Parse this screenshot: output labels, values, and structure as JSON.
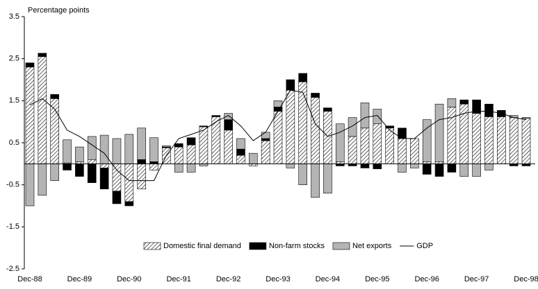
{
  "chart_data": {
    "type": "stacked-bar-line",
    "y_label": "Percentage points",
    "categories": [
      "Dec-88",
      null,
      null,
      null,
      "Dec-89",
      null,
      null,
      null,
      "Dec-90",
      null,
      null,
      null,
      "Dec-91",
      null,
      null,
      null,
      "Dec-92",
      null,
      null,
      null,
      "Dec-93",
      null,
      null,
      null,
      "Dec-94",
      null,
      null,
      null,
      "Dec-95",
      null,
      null,
      null,
      "Dec-96",
      null,
      null,
      null,
      "Dec-97",
      null,
      null,
      null,
      "Dec-98"
    ],
    "series": [
      {
        "name": "Domestic final demand",
        "color": "#000000",
        "kind": "bar",
        "values": [
          2.3,
          2.55,
          1.55,
          0.02,
          0.05,
          0.1,
          -0.1,
          -0.65,
          -0.9,
          -0.6,
          -0.15,
          0.38,
          0.4,
          0.45,
          0.88,
          1.12,
          0.8,
          0.2,
          -0.05,
          0.55,
          1.25,
          1.75,
          1.95,
          1.58,
          1.25,
          0.05,
          0.65,
          0.85,
          0.95,
          0.85,
          0.6,
          0.6,
          0.05,
          0.05,
          1.35,
          1.42,
          1.2,
          1.12,
          1.12,
          1.1,
          1.08
        ]
      },
      {
        "name": "Non-farm stocks",
        "color": "#000000",
        "kind": "bar",
        "values": [
          0.1,
          0.08,
          0.1,
          -0.15,
          -0.3,
          -0.45,
          -0.5,
          -0.3,
          -0.1,
          0.1,
          0.05,
          0.02,
          0.08,
          0.17,
          0.02,
          0.03,
          0.25,
          0.15,
          0,
          0.05,
          0.1,
          0.25,
          0.2,
          0.1,
          0.08,
          -0.05,
          -0.05,
          -0.1,
          -0.12,
          0.05,
          0.25,
          0,
          -0.25,
          -0.3,
          -0.2,
          0.1,
          0.32,
          0.3,
          0.15,
          -0.05,
          -0.05
        ]
      },
      {
        "name": "Net exports",
        "color": "#b4b4b4",
        "kind": "bar",
        "values": [
          -1.0,
          -0.75,
          -0.4,
          0.55,
          0.35,
          0.55,
          0.68,
          0.6,
          0.7,
          0.75,
          0.57,
          0.03,
          -0.2,
          -0.2,
          -0.05,
          0,
          0.15,
          0.25,
          0.25,
          0.15,
          0.15,
          -0.1,
          -0.5,
          -0.8,
          -0.7,
          0.9,
          0.45,
          0.6,
          0.35,
          0,
          -0.2,
          -0.1,
          1.0,
          1.37,
          0.2,
          -0.3,
          -0.3,
          -0.15,
          0,
          0.05,
          0.02
        ]
      },
      {
        "name": "GDP",
        "color": "#000000",
        "kind": "line",
        "values": [
          1.4,
          1.55,
          1.3,
          0.8,
          0.65,
          0.45,
          0.25,
          -0.15,
          -0.4,
          -0.4,
          -0.4,
          0.2,
          0.6,
          0.7,
          0.8,
          1.0,
          1.15,
          0.9,
          0.55,
          0.75,
          1.25,
          1.75,
          1.7,
          0.95,
          0.65,
          0.75,
          0.9,
          1.1,
          1.15,
          0.8,
          0.6,
          0.6,
          0.85,
          1.05,
          1.1,
          1.2,
          1.25,
          1.25,
          1.2,
          1.1,
          1.05
        ]
      }
    ],
    "ylim": [
      -2.5,
      3.5
    ],
    "yticks": [
      -2.5,
      -1.5,
      -0.5,
      0.5,
      1.5,
      2.5,
      3.5
    ]
  }
}
